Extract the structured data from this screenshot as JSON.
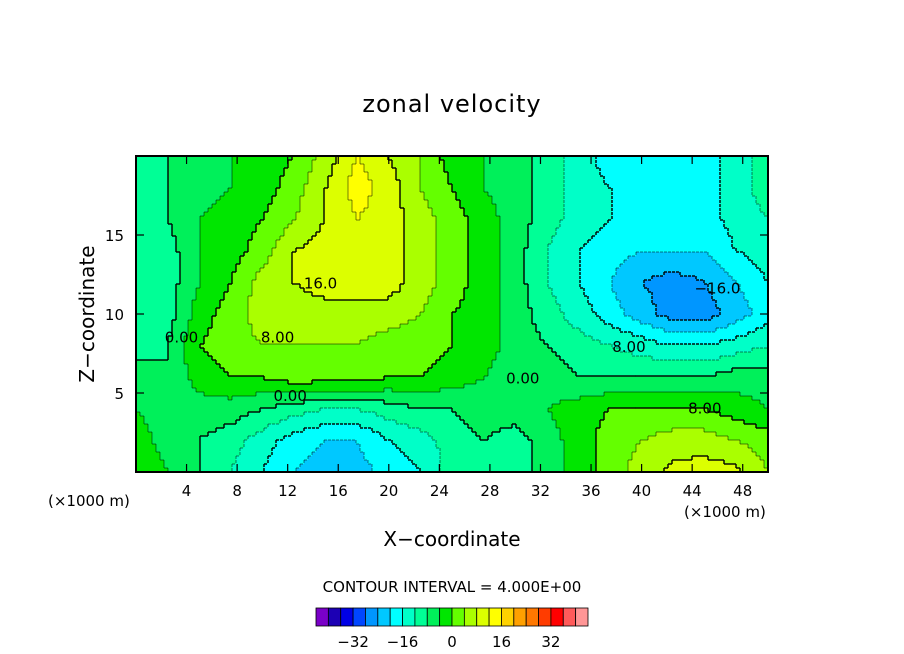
{
  "chart_data": {
    "type": "heatmap",
    "title": "zonal velocity",
    "xlabel": "X−coordinate",
    "ylabel": "Z−coordinate",
    "x_units": "(×1000 m)",
    "y_units": "(×1000 m)",
    "xlim": [
      0,
      50
    ],
    "ylim": [
      0,
      20
    ],
    "x_ticks": [
      4,
      8,
      12,
      16,
      20,
      24,
      28,
      32,
      36,
      40,
      44,
      48
    ],
    "y_ticks": [
      5,
      10,
      15
    ],
    "contour_interval_text": "CONTOUR INTERVAL = 4.000E+00",
    "contour_labels": [
      {
        "text": "16.0",
        "x": 14.6,
        "z": 11.6
      },
      {
        "text": "8.00",
        "x": 11.2,
        "z": 8.2
      },
      {
        "text": "0.00",
        "x": 3.6,
        "z": 8.2
      },
      {
        "text": "0.00",
        "x": 12.2,
        "z": 4.5
      },
      {
        "text": "0.00",
        "x": 30.6,
        "z": 5.6
      },
      {
        "text": "8.00",
        "x": 39.0,
        "z": 7.6
      },
      {
        "text": "8.00",
        "x": 45.0,
        "z": 3.7
      },
      {
        "text": "−16.0",
        "x": 46.0,
        "z": 11.3
      }
    ],
    "colorbar": {
      "tick_labels": [
        "−32",
        "−16",
        "0",
        "16",
        "32"
      ],
      "tick_values": [
        -32,
        -16,
        0,
        16,
        32
      ],
      "colors": [
        "#7a00c8",
        "#1c00b4",
        "#0000e6",
        "#0046ff",
        "#0096ff",
        "#00c8ff",
        "#00ffff",
        "#00ffc8",
        "#00ff96",
        "#00f05a",
        "#00e600",
        "#64ff00",
        "#aaff00",
        "#dcff00",
        "#ffff00",
        "#ffd200",
        "#ffa000",
        "#ff7800",
        "#ff3c00",
        "#ff0000",
        "#ff5a5a",
        "#ff9696"
      ]
    },
    "value_grid": {
      "x": [
        0,
        2.5,
        5,
        7.5,
        10,
        12.5,
        15,
        17.5,
        20,
        22.5,
        25,
        27.5,
        30,
        32.5,
        35,
        37.5,
        40,
        42.5,
        45,
        47.5,
        50
      ],
      "z": [
        0,
        2,
        4,
        6,
        8,
        10,
        12,
        14,
        16,
        18,
        20
      ],
      "values": [
        [
          8,
          4,
          0,
          -4,
          -8,
          -12,
          -14,
          -14,
          -10,
          -8,
          -2,
          0,
          -2,
          2,
          6,
          10,
          14,
          17,
          18,
          17,
          12
        ],
        [
          6,
          2,
          0,
          -2,
          -6,
          -10,
          -12,
          -12,
          -8,
          -6,
          -2,
          0,
          -2,
          2,
          6,
          10,
          12,
          14,
          14,
          12,
          10
        ],
        [
          4,
          2,
          2,
          2,
          0,
          -2,
          -4,
          -4,
          -2,
          0,
          0,
          2,
          2,
          4,
          6,
          8,
          8,
          8,
          8,
          6,
          4
        ],
        [
          2,
          0,
          6,
          8,
          8,
          10,
          10,
          10,
          8,
          8,
          6,
          4,
          2,
          2,
          0,
          0,
          0,
          0,
          0,
          2,
          2
        ],
        [
          -2,
          0,
          8,
          10,
          12,
          12,
          12,
          12,
          10,
          10,
          8,
          6,
          2,
          0,
          -2,
          -4,
          -6,
          -8,
          -8,
          -6,
          -4
        ],
        [
          -4,
          -2,
          6,
          10,
          14,
          14,
          14,
          14,
          14,
          12,
          8,
          6,
          2,
          -2,
          -6,
          -10,
          -14,
          -18,
          -18,
          -14,
          -10
        ],
        [
          -4,
          -2,
          4,
          8,
          14,
          16,
          18,
          18,
          18,
          14,
          10,
          6,
          2,
          -4,
          -8,
          -12,
          -16,
          -18,
          -16,
          -12,
          -8
        ],
        [
          -4,
          -2,
          4,
          6,
          10,
          16,
          18,
          18,
          18,
          14,
          10,
          6,
          2,
          -4,
          -8,
          -10,
          -12,
          -12,
          -12,
          -8,
          -6
        ],
        [
          -2,
          0,
          4,
          6,
          8,
          12,
          16,
          20,
          18,
          14,
          10,
          6,
          2,
          -2,
          -6,
          -8,
          -10,
          -10,
          -10,
          -6,
          -4
        ],
        [
          -2,
          0,
          2,
          4,
          6,
          10,
          16,
          22,
          18,
          12,
          8,
          4,
          2,
          -2,
          -6,
          -8,
          -10,
          -12,
          -10,
          -6,
          -2
        ],
        [
          -2,
          0,
          2,
          4,
          6,
          8,
          14,
          20,
          16,
          12,
          6,
          4,
          2,
          -2,
          -6,
          -10,
          -10,
          -12,
          -10,
          -6,
          -2
        ]
      ]
    }
  }
}
